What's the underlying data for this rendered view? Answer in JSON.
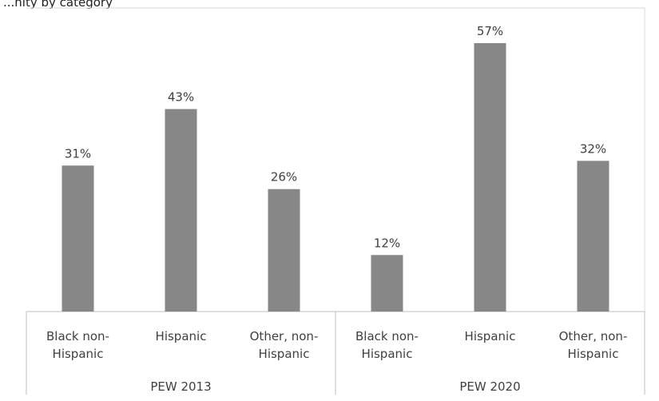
{
  "caption": "...nity by category",
  "chart_data": {
    "type": "bar",
    "groups": [
      "PEW 2013",
      "PEW 2020"
    ],
    "categories": [
      "Black non-Hispanic",
      "Hispanic",
      "Other, non-Hispanic"
    ],
    "category_lines": [
      [
        "Black non-",
        "Hispanic"
      ],
      [
        "Hispanic"
      ],
      [
        "Other, non-",
        "Hispanic"
      ]
    ],
    "series": [
      {
        "group": "PEW 2013",
        "values": [
          31,
          43,
          26
        ],
        "labels": [
          "31%",
          "43%",
          "26%"
        ]
      },
      {
        "group": "PEW 2020",
        "values": [
          12,
          57,
          32
        ],
        "labels": [
          "12%",
          "57%",
          "32%"
        ]
      }
    ],
    "ylim": [
      0,
      60
    ],
    "bar_color": "#878787",
    "grid": false,
    "legend": "none"
  }
}
